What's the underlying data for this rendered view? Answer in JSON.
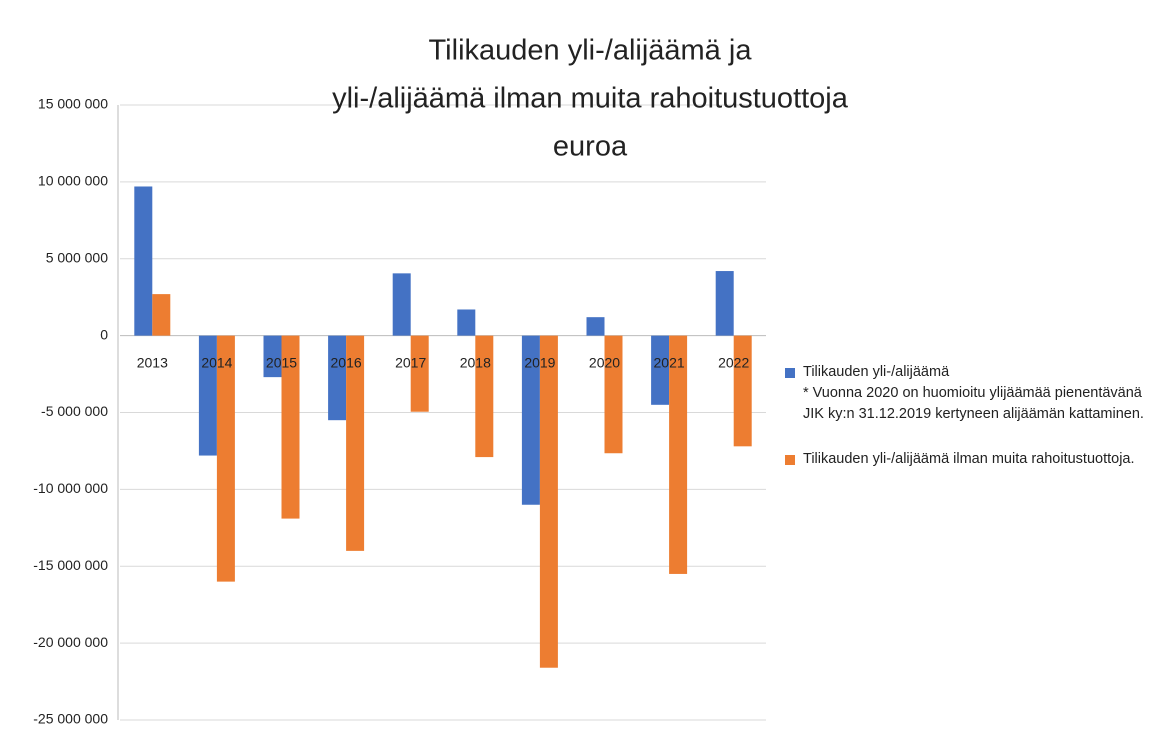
{
  "chart_data": {
    "type": "bar",
    "title": [
      "Tilikauden yli-/alijäämä ja",
      "yli-/alijäämä ilman muita rahoitustuottoja",
      "euroa"
    ],
    "categories": [
      "2013",
      "2014",
      "2015",
      "2016",
      "2017",
      "2018",
      "2019",
      "2020",
      "2021",
      "2022"
    ],
    "series": [
      {
        "name": "Tilikauden yli-/alijäämä",
        "color": "#4472c4",
        "values": [
          9700000,
          -7800000,
          -2700000,
          -5500000,
          4050000,
          1700000,
          -11000000,
          1200000,
          -4500000,
          4200000
        ]
      },
      {
        "name": "Tilikauden yli-/alijäämä ilman muita rahoitustuottoja.",
        "color": "#ed7d31",
        "values": [
          2700000,
          -16000000,
          -11900000,
          -14000000,
          -4950000,
          -7900000,
          -21600000,
          -7650000,
          -15500000,
          -7200000
        ]
      }
    ],
    "legend_note": "* Vuonna 2020 on huomioitu ylijäämää pienentävänä JIK ky:n 31.12.2019 kertyneen alijäämän kattaminen.",
    "ylim": [
      -25000000,
      15000000
    ],
    "yticks": [
      {
        "value": -25000000,
        "label": "-25 000 000"
      },
      {
        "value": -20000000,
        "label": "-20 000 000"
      },
      {
        "value": -15000000,
        "label": "-15 000 000"
      },
      {
        "value": -10000000,
        "label": "-10 000 000"
      },
      {
        "value": -5000000,
        "label": "-5 000 000"
      },
      0,
      {
        "value": 5000000,
        "label": "5 000 000"
      },
      {
        "value": 10000000,
        "label": "10 000 000"
      },
      {
        "value": 15000000,
        "label": "15 000 000"
      }
    ],
    "grid": true,
    "legend": "right"
  }
}
